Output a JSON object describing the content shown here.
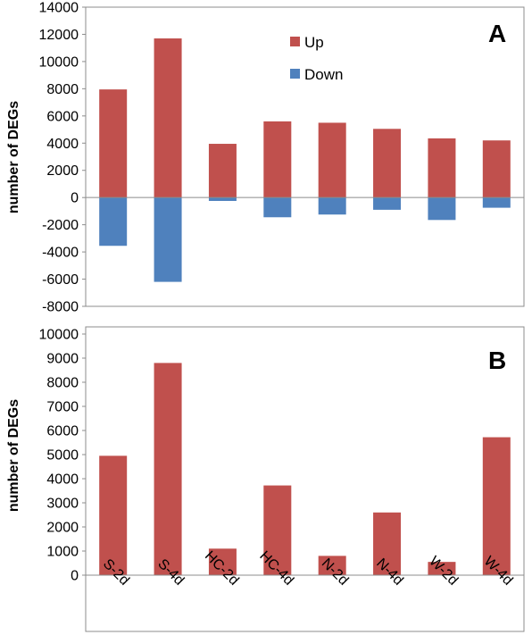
{
  "chart_data": [
    {
      "type": "bar",
      "panel": "A",
      "categories": [
        "S-2d",
        "S-4d",
        "HC-2d",
        "HC-4d",
        "N-2d",
        "N-4d",
        "W-2d",
        "W-4d"
      ],
      "series": [
        {
          "name": "Up",
          "color": "#c0504d",
          "values": [
            7950,
            11700,
            3950,
            5600,
            5500,
            5050,
            4350,
            4200
          ]
        },
        {
          "name": "Down",
          "color": "#4f81bd",
          "values": [
            -3550,
            -6200,
            -250,
            -1450,
            -1250,
            -900,
            -1650,
            -750
          ]
        }
      ],
      "ylabel": "number of DEGs",
      "ylim": [
        -8000,
        14000
      ],
      "yticks": [
        -8000,
        -6000,
        -4000,
        -2000,
        0,
        2000,
        4000,
        6000,
        8000,
        10000,
        12000,
        14000
      ],
      "legend_position": "top-center",
      "grid": false
    },
    {
      "type": "bar",
      "panel": "B",
      "categories": [
        "S-2d",
        "S-4d",
        "HC-2d",
        "HC-4d",
        "N-2d",
        "N-4d",
        "W-2d",
        "W-4d"
      ],
      "series": [
        {
          "color": "#c0504d",
          "values": [
            4950,
            8800,
            1100,
            3720,
            800,
            2600,
            550,
            5720
          ]
        }
      ],
      "ylabel": "number of DEGs",
      "ylim": [
        0,
        10000
      ],
      "yticks": [
        0,
        1000,
        2000,
        3000,
        4000,
        5000,
        6000,
        7000,
        8000,
        9000,
        10000
      ],
      "grid": false
    }
  ],
  "panel_labels": {
    "a": "A",
    "b": "B"
  }
}
